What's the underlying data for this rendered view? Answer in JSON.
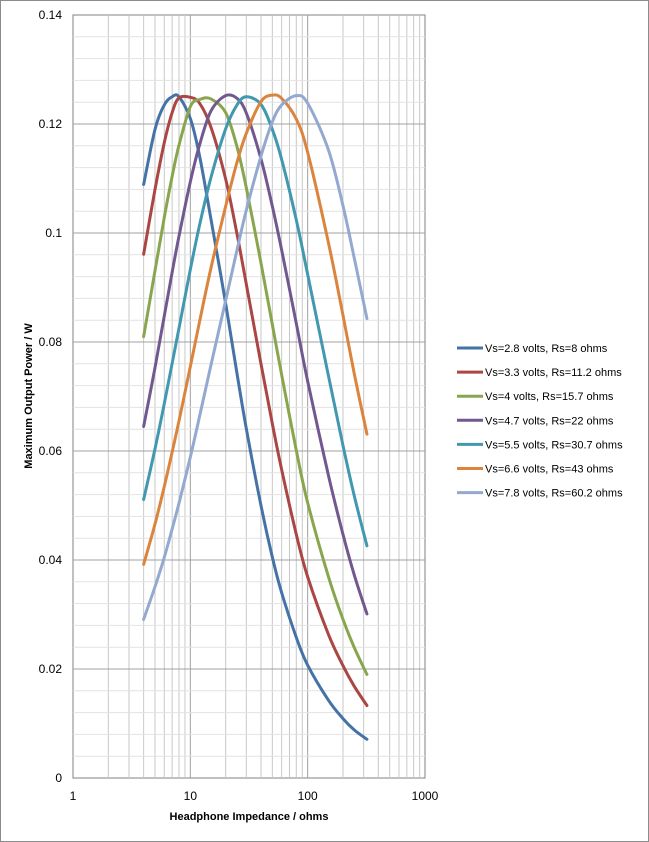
{
  "chart_data": {
    "type": "line",
    "title": "",
    "xlabel": "Headphone Impedance  / ohms",
    "ylabel": "Maximum Output Power / W",
    "x_scale": "log",
    "xlim": [
      1,
      1000
    ],
    "ylim": [
      0,
      0.14
    ],
    "x_ticks": [
      1,
      10,
      100,
      1000
    ],
    "x_tick_labels": [
      "1",
      "10",
      "100",
      "1000"
    ],
    "y_ticks": [
      0,
      0.02,
      0.04,
      0.06,
      0.08,
      0.1,
      0.12,
      0.14
    ],
    "y_tick_labels": [
      "0",
      "0.02",
      "0.04",
      "0.06",
      "0.08",
      "0.1",
      "0.12",
      "0.14"
    ],
    "grid": true,
    "legend_position": "right",
    "x": [
      4,
      5,
      6,
      7,
      8,
      10,
      12,
      15,
      20,
      25,
      30,
      40,
      50,
      60,
      80,
      100,
      150,
      200,
      250,
      320
    ],
    "series": [
      {
        "name": "Vs=2.8 volts, Rs=8 ohms",
        "color": "#4572a7",
        "Vs": 2.8,
        "Rs": 8,
        "values": [
          0.1089,
          0.119,
          0.1235,
          0.125,
          0.125,
          0.121,
          0.1141,
          0.1025,
          0.0871,
          0.0742,
          0.0641,
          0.05,
          0.0405,
          0.034,
          0.0258,
          0.0207,
          0.0143,
          0.0109,
          0.0088,
          0.0071
        ]
      },
      {
        "name": "Vs=3.3 volts, Rs=11.2 ohms",
        "color": "#aa4643",
        "Vs": 3.3,
        "Rs": 11.2,
        "values": [
          0.0961,
          0.108,
          0.1166,
          0.1221,
          0.1248,
          0.1249,
          0.1238,
          0.1194,
          0.1099,
          0.0998,
          0.0906,
          0.076,
          0.065,
          0.0566,
          0.0447,
          0.0369,
          0.0264,
          0.0206,
          0.0168,
          0.0133
        ]
      },
      {
        "name": "Vs=4 volts, Rs=15.7 ohms",
        "color": "#89a54e",
        "Vs": 4,
        "Rs": 15.7,
        "values": [
          0.081,
          0.0931,
          0.1029,
          0.1104,
          0.1161,
          0.1232,
          0.1245,
          0.1246,
          0.1221,
          0.1158,
          0.1083,
          0.0945,
          0.0832,
          0.074,
          0.0601,
          0.0505,
          0.037,
          0.0291,
          0.0239,
          0.019
        ]
      },
      {
        "name": "Vs=4.7 volts, Rs=22 ohms",
        "color": "#71588f",
        "Vs": 4.7,
        "Rs": 22,
        "values": [
          0.0645,
          0.0753,
          0.0848,
          0.0928,
          0.0994,
          0.1094,
          0.1162,
          0.1224,
          0.1252,
          0.1247,
          0.122,
          0.1136,
          0.1049,
          0.0969,
          0.0834,
          0.0728,
          0.0556,
          0.0447,
          0.0372,
          0.0301
        ]
      },
      {
        "name": "Vs=5.5 volts, Rs=30.7 ohms",
        "color": "#4198af",
        "Vs": 5.5,
        "Rs": 30.7,
        "values": [
          0.0511,
          0.0604,
          0.0687,
          0.0761,
          0.0825,
          0.0933,
          0.1015,
          0.1102,
          0.1191,
          0.1235,
          0.125,
          0.1236,
          0.119,
          0.1135,
          0.1024,
          0.0924,
          0.0739,
          0.061,
          0.0517,
          0.0426
        ]
      },
      {
        "name": "Vs=6.6 volts, Rs=43 ohms",
        "color": "#db843d",
        "Vs": 6.6,
        "Rs": 43,
        "values": [
          0.0392,
          0.0466,
          0.0535,
          0.0598,
          0.0655,
          0.0755,
          0.0838,
          0.0936,
          0.1049,
          0.113,
          0.1183,
          0.1241,
          0.1253,
          0.1247,
          0.1209,
          0.1148,
          0.0983,
          0.0849,
          0.0741,
          0.0631
        ]
      },
      {
        "name": "Vs=7.8 volts, Rs=60.2 ohms",
        "color": "#93a9cf",
        "Vs": 7.8,
        "Rs": 60.2,
        "values": [
          0.0291,
          0.0351,
          0.0405,
          0.0457,
          0.0504,
          0.0589,
          0.0664,
          0.0758,
          0.0876,
          0.0969,
          0.1042,
          0.1141,
          0.1204,
          0.1235,
          0.1252,
          0.1238,
          0.1153,
          0.105,
          0.0953,
          0.0843
        ]
      }
    ]
  }
}
